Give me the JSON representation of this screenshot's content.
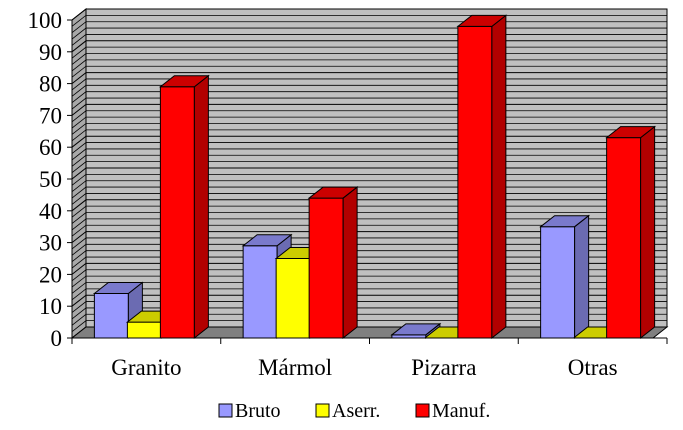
{
  "chart_data": {
    "type": "bar",
    "style": "3d-clustered",
    "categories": [
      "Granito",
      "Mármol",
      "Pizarra",
      "Otras"
    ],
    "series": [
      {
        "name": "Bruto",
        "values": [
          14,
          29,
          1,
          35
        ]
      },
      {
        "name": "Aserr.",
        "values": [
          5,
          25,
          0,
          0
        ]
      },
      {
        "name": "Manuf.",
        "values": [
          79,
          44,
          98,
          63
        ]
      }
    ],
    "ylim": [
      0,
      100
    ],
    "yticks": [
      "0",
      "10",
      "20",
      "30",
      "40",
      "50",
      "60",
      "70",
      "80",
      "90",
      "100"
    ],
    "grid": true,
    "legend_position": "bottom"
  },
  "colors": {
    "Bruto": {
      "front": "#9999ff",
      "side": "#6b6bb2",
      "top": "#7a7acc"
    },
    "Aserr.": {
      "front": "#ffff00",
      "side": "#b2b200",
      "top": "#cccc00"
    },
    "Manuf.": {
      "front": "#ff0000",
      "side": "#b20000",
      "top": "#cc0000"
    },
    "wall": "#c0c0c0",
    "floor": "#808080"
  }
}
